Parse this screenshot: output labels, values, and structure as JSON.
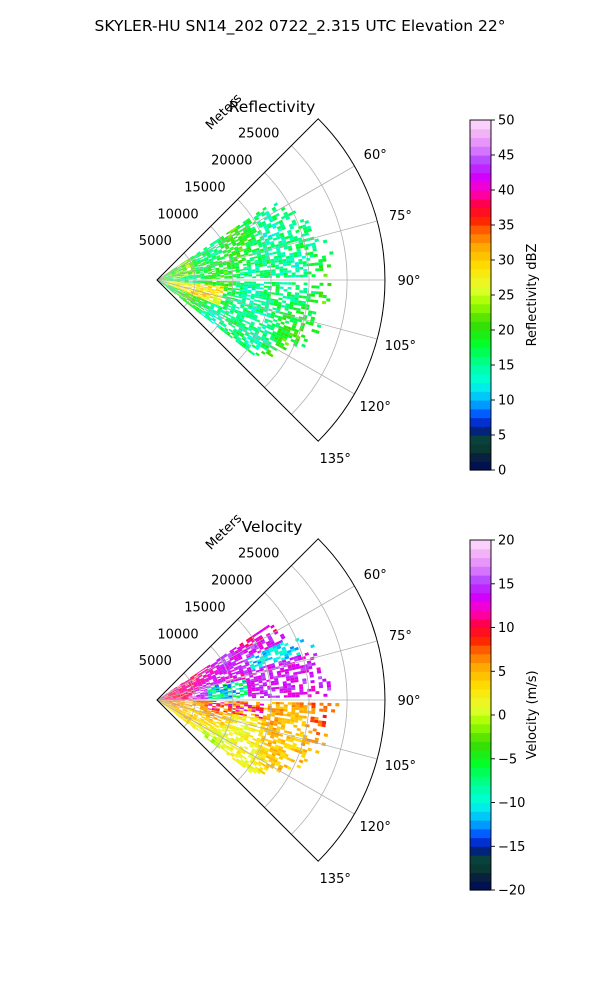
{
  "figure": {
    "suptitle": "SKYLER-HU  SN14_202  0722_2.315 UTC Elevation 22°"
  },
  "chart_data": [
    {
      "type": "polar-sector-radar",
      "title": "Reflectivity",
      "radial_label": "Meters",
      "radial_ticks": [
        "5000",
        "10000",
        "15000",
        "20000",
        "25000"
      ],
      "radial_tick_values": [
        5000,
        10000,
        15000,
        20000,
        25000
      ],
      "rlim": [
        0,
        30000
      ],
      "angle_ticks": [
        "60°",
        "75°",
        "90°",
        "105°",
        "120°",
        "135°"
      ],
      "angle_tick_values": [
        60,
        75,
        90,
        105,
        120,
        135
      ],
      "theta_range_deg": [
        45,
        135
      ],
      "data_theta_range_deg": [
        56,
        128
      ],
      "data_max_range_m": 24000,
      "grid": true,
      "colorbar": {
        "label": "Reflectivity dBZ",
        "vmin": 0,
        "vmax": 50,
        "ticks": [
          "0",
          "5",
          "10",
          "15",
          "20",
          "25",
          "30",
          "35",
          "40",
          "45",
          "50"
        ],
        "tick_values": [
          0,
          5,
          10,
          15,
          20,
          25,
          30,
          35,
          40,
          45,
          50
        ]
      },
      "dominant_values_dbz": [
        16,
        22
      ],
      "description_colors": {
        "low": "#0a1f6b",
        "mid": "#22e0c8",
        "high": "#ffe000",
        "max": "#ffd8ff"
      }
    },
    {
      "type": "polar-sector-radar",
      "title": "Velocity",
      "radial_label": "Meters",
      "radial_ticks": [
        "5000",
        "10000",
        "15000",
        "20000",
        "25000"
      ],
      "radial_tick_values": [
        5000,
        10000,
        15000,
        20000,
        25000
      ],
      "rlim": [
        0,
        30000
      ],
      "angle_ticks": [
        "60°",
        "75°",
        "90°",
        "105°",
        "120°",
        "135°"
      ],
      "angle_tick_values": [
        60,
        75,
        90,
        105,
        120,
        135
      ],
      "theta_range_deg": [
        45,
        135
      ],
      "data_theta_range_deg": [
        56,
        128
      ],
      "data_max_range_m": 24000,
      "grid": true,
      "colorbar": {
        "label": "Velocity (m/s)",
        "vmin": -20,
        "vmax": 20,
        "ticks": [
          "−20",
          "−15",
          "−10",
          "−5",
          "0",
          "5",
          "10",
          "15",
          "20"
        ],
        "tick_values": [
          -20,
          -15,
          -10,
          -5,
          0,
          5,
          10,
          15,
          20
        ]
      },
      "dominant_values_ms": [
        12,
        4,
        14
      ]
    }
  ]
}
